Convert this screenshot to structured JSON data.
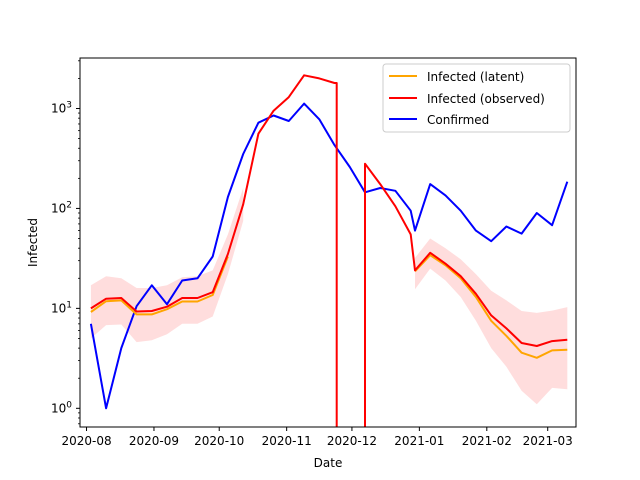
{
  "chart_data": {
    "type": "line",
    "title": "",
    "xlabel": "Date",
    "ylabel": "Infected",
    "yscale": "log",
    "ylim": [
      0.65,
      3200
    ],
    "xlim": [
      "2020-07-29",
      "2021-03-14"
    ],
    "x_ticks": [
      "2020-08",
      "2020-09",
      "2020-10",
      "2020-11",
      "2020-12",
      "2021-01",
      "2021-02",
      "2021-03"
    ],
    "y_ticks": [
      {
        "value": 1,
        "base": "10",
        "exp": "0"
      },
      {
        "value": 10,
        "base": "10",
        "exp": "1"
      },
      {
        "value": 100,
        "base": "10",
        "exp": "2"
      },
      {
        "value": 1000,
        "base": "10",
        "exp": "3"
      }
    ],
    "grid": false,
    "legend_position": "top-right",
    "series": [
      {
        "name": "Infected (latent)",
        "color": "#ffa500",
        "x": [
          "2020-08-03",
          "2020-08-10",
          "2020-08-17",
          "2020-08-24",
          "2020-08-31",
          "2020-09-07",
          "2020-09-14",
          "2020-09-21",
          "2020-09-28",
          "2020-10-05"
        ],
        "values": [
          9.2,
          11.8,
          12.0,
          8.7,
          8.7,
          9.8,
          11.7,
          11.7,
          13.6,
          33
        ]
      },
      {
        "name": "Infected (latent)",
        "color": "#ffa500",
        "x": [
          "2020-12-30",
          "2021-01-06",
          "2021-01-13",
          "2021-01-20",
          "2021-01-27",
          "2021-02-03",
          "2021-02-10",
          "2021-02-17",
          "2021-02-24",
          "2021-03-03",
          "2021-03-10"
        ],
        "values": [
          23.5,
          34,
          27,
          20,
          13,
          7.5,
          5.3,
          3.6,
          3.2,
          3.8,
          3.85
        ]
      },
      {
        "name": "Infected (observed)",
        "color": "#ff0000",
        "x": [
          "2020-08-03",
          "2020-08-10",
          "2020-08-17",
          "2020-08-24",
          "2020-08-31",
          "2020-09-07",
          "2020-09-14",
          "2020-09-21",
          "2020-09-28",
          "2020-10-05",
          "2020-10-12",
          "2020-10-19",
          "2020-10-26",
          "2020-11-02",
          "2020-11-09",
          "2020-11-16",
          "2020-11-23",
          "2020-11-24",
          "2020-11-24"
        ],
        "values": [
          10,
          12.5,
          12.7,
          9.3,
          9.4,
          10.4,
          12.7,
          12.7,
          14.5,
          35,
          110,
          560,
          950,
          1300,
          2150,
          2000,
          1800,
          1800,
          0.5
        ]
      },
      {
        "name": "Infected (observed)",
        "color": "#ff0000",
        "x": [
          "2020-12-07",
          "2020-12-07",
          "2020-12-14",
          "2020-12-21",
          "2020-12-28",
          "2020-12-30",
          "2021-01-06",
          "2021-01-13",
          "2021-01-20",
          "2021-01-27",
          "2021-02-03",
          "2021-02-10",
          "2021-02-17",
          "2021-02-24",
          "2021-03-03",
          "2021-03-10"
        ],
        "values": [
          0.5,
          280,
          175,
          105,
          55,
          24,
          36,
          28,
          21,
          14,
          8.5,
          6.3,
          4.5,
          4.2,
          4.7,
          4.85
        ]
      },
      {
        "name": "Confirmed",
        "color": "#0000ff",
        "x": [
          "2020-08-03",
          "2020-08-10",
          "2020-08-17",
          "2020-08-24",
          "2020-08-31",
          "2020-09-07",
          "2020-09-14",
          "2020-09-21",
          "2020-09-28",
          "2020-10-05",
          "2020-10-12",
          "2020-10-19",
          "2020-10-26",
          "2020-11-02",
          "2020-11-09",
          "2020-11-16",
          "2020-11-23",
          "2020-11-30",
          "2020-12-07",
          "2020-12-14",
          "2020-12-21",
          "2020-12-28",
          "2020-12-30",
          "2021-01-06",
          "2021-01-13",
          "2021-01-20",
          "2021-01-27",
          "2021-02-03",
          "2021-02-10",
          "2021-02-17",
          "2021-02-24",
          "2021-03-03",
          "2021-03-10"
        ],
        "values": [
          7,
          1,
          4,
          10.5,
          17,
          11,
          19,
          20,
          33,
          130,
          350,
          720,
          850,
          750,
          1120,
          780,
          430,
          260,
          145,
          160,
          150,
          95,
          60,
          175,
          135,
          95,
          60,
          47,
          66,
          56,
          90,
          68,
          185
        ]
      }
    ],
    "confidence_bands": [
      {
        "color": "#ffb3b3",
        "x": [
          "2020-08-03",
          "2020-08-10",
          "2020-08-17",
          "2020-08-24",
          "2020-08-31",
          "2020-09-07",
          "2020-09-14",
          "2020-09-21",
          "2020-09-28",
          "2020-10-05",
          "2020-10-12"
        ],
        "upper": [
          17,
          21,
          20,
          16,
          16,
          17,
          20.5,
          21,
          24,
          55,
          160
        ],
        "lower": [
          5,
          6.8,
          6.9,
          4.6,
          4.8,
          5.5,
          7.0,
          7.0,
          8.3,
          22,
          75
        ]
      },
      {
        "color": "#ffb3b3",
        "x": [
          "2020-12-30",
          "2021-01-06",
          "2021-01-13",
          "2021-01-20",
          "2021-01-27",
          "2021-02-03",
          "2021-02-10",
          "2021-02-17",
          "2021-02-24",
          "2021-03-03",
          "2021-03-10"
        ],
        "upper": [
          32,
          50,
          40,
          31,
          22,
          15,
          12,
          9.4,
          9.0,
          9.5,
          10.3
        ],
        "lower": [
          15.5,
          25,
          19,
          13,
          7.5,
          4.0,
          2.6,
          1.5,
          1.1,
          1.6,
          1.55
        ]
      }
    ]
  },
  "legend": {
    "items": [
      {
        "label": "Infected (latent)",
        "color": "#ffa500"
      },
      {
        "label": "Infected (observed)",
        "color": "#ff0000"
      },
      {
        "label": "Confirmed",
        "color": "#0000ff"
      }
    ]
  }
}
